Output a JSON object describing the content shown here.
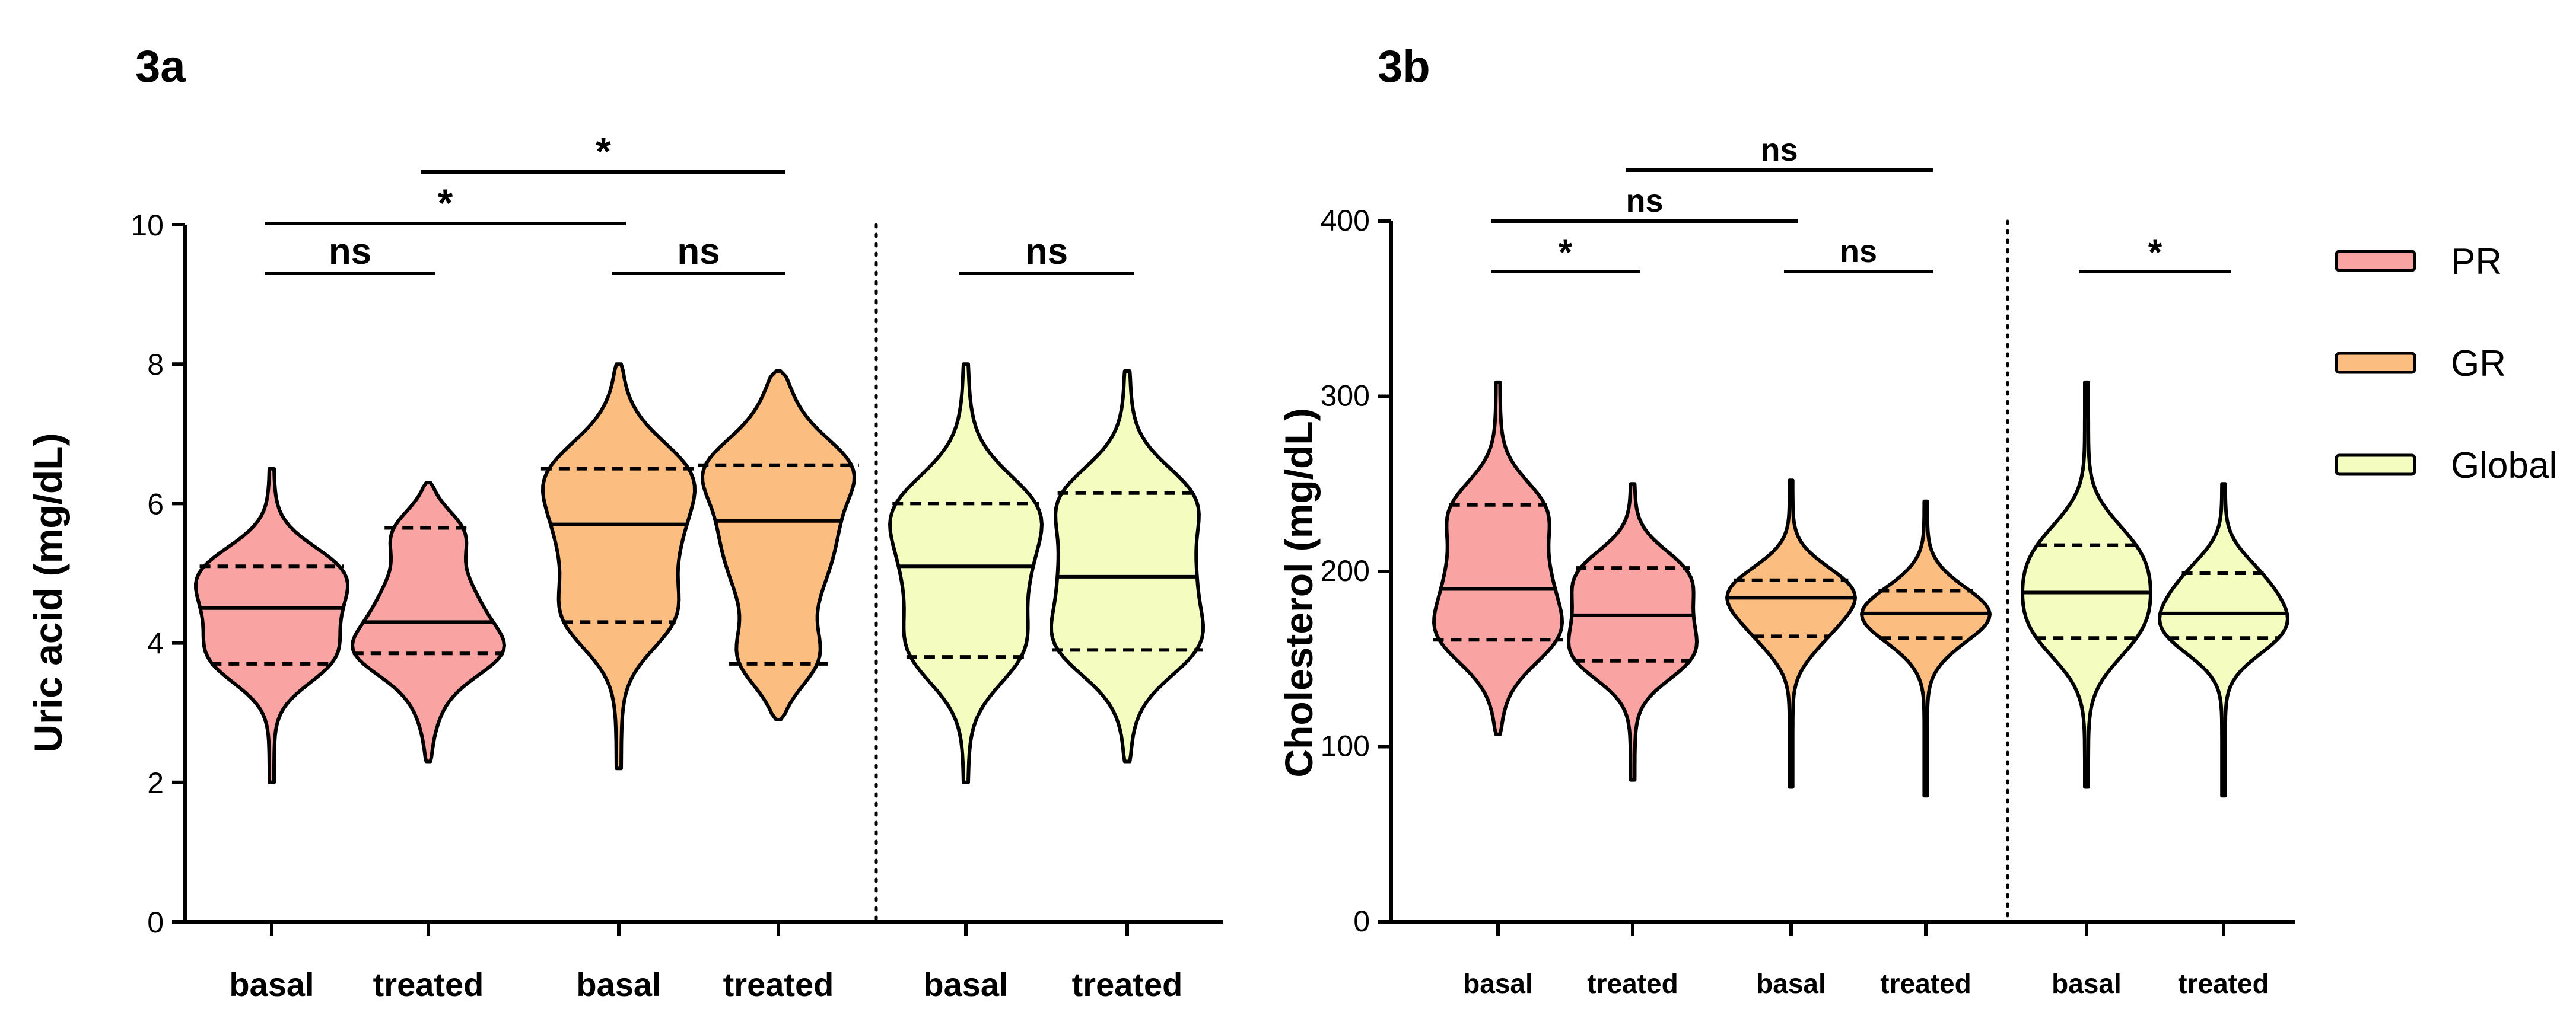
{
  "colors": {
    "PR": "#f9a3a3",
    "GR": "#fbbd80",
    "Global": "#f4fcbf"
  },
  "legend": [
    {
      "name": "PR",
      "color": "#f9a3a3"
    },
    {
      "name": "GR",
      "color": "#fbbd80"
    },
    {
      "name": "Global",
      "color": "#f4fcbf"
    }
  ],
  "chart_data": [
    {
      "type": "violin",
      "panel_label": "3a",
      "ylabel": "Uric acid (mg/dL)",
      "ylim": [
        0,
        10
      ],
      "yticks": [
        0,
        2,
        4,
        6,
        8,
        10
      ],
      "categories": [
        "basal",
        "treated",
        "basal",
        "treated",
        "basal",
        "treated"
      ],
      "violins": [
        {
          "group": "PR",
          "label": "basal",
          "min": 2.0,
          "max": 6.5,
          "median": 4.5,
          "q1": 3.7,
          "q3": 5.1
        },
        {
          "group": "PR",
          "label": "treated",
          "min": 2.3,
          "max": 6.3,
          "median": 4.3,
          "q1": 3.85,
          "q3": 5.65
        },
        {
          "group": "GR",
          "label": "basal",
          "min": 2.2,
          "max": 8.0,
          "median": 5.7,
          "q1": 4.3,
          "q3": 6.5
        },
        {
          "group": "GR",
          "label": "treated",
          "min": 2.9,
          "max": 7.9,
          "median": 5.75,
          "q1": 3.7,
          "q3": 6.55
        },
        {
          "group": "Global",
          "label": "basal",
          "min": 2.0,
          "max": 8.0,
          "median": 5.1,
          "q1": 3.8,
          "q3": 6.0
        },
        {
          "group": "Global",
          "label": "treated",
          "min": 2.3,
          "max": 7.9,
          "median": 4.95,
          "q1": 3.9,
          "q3": 6.15
        }
      ],
      "comparisons": [
        {
          "from": 0,
          "to": 1,
          "label": "ns"
        },
        {
          "from": 2,
          "to": 3,
          "label": "ns"
        },
        {
          "from": 4,
          "to": 5,
          "label": "ns"
        },
        {
          "from": 0,
          "to": 2,
          "label": "*"
        },
        {
          "from": 1,
          "to": 3,
          "label": "*"
        }
      ]
    },
    {
      "type": "violin",
      "panel_label": "3b",
      "ylabel": "Cholesterol (mg/dL)",
      "ylim": [
        0,
        400
      ],
      "yticks": [
        0,
        100,
        200,
        300,
        400
      ],
      "categories": [
        "basal",
        "treated",
        "basal",
        "treated",
        "basal",
        "treated"
      ],
      "violins": [
        {
          "group": "PR",
          "label": "basal",
          "min": 107,
          "max": 308,
          "median": 190,
          "q1": 161,
          "q3": 238
        },
        {
          "group": "PR",
          "label": "treated",
          "min": 81,
          "max": 250,
          "median": 175,
          "q1": 149,
          "q3": 202
        },
        {
          "group": "GR",
          "label": "basal",
          "min": 77,
          "max": 252,
          "median": 185,
          "q1": 163,
          "q3": 195
        },
        {
          "group": "GR",
          "label": "treated",
          "min": 72,
          "max": 240,
          "median": 176,
          "q1": 162,
          "q3": 189
        },
        {
          "group": "Global",
          "label": "basal",
          "min": 77,
          "max": 308,
          "median": 188,
          "q1": 162,
          "q3": 215
        },
        {
          "group": "Global",
          "label": "treated",
          "min": 72,
          "max": 250,
          "median": 176,
          "q1": 162,
          "q3": 199
        }
      ],
      "comparisons": [
        {
          "from": 0,
          "to": 1,
          "label": "*"
        },
        {
          "from": 2,
          "to": 3,
          "label": "ns"
        },
        {
          "from": 4,
          "to": 5,
          "label": "*"
        },
        {
          "from": 0,
          "to": 2,
          "label": "ns"
        },
        {
          "from": 1,
          "to": 3,
          "label": "ns"
        }
      ]
    }
  ]
}
